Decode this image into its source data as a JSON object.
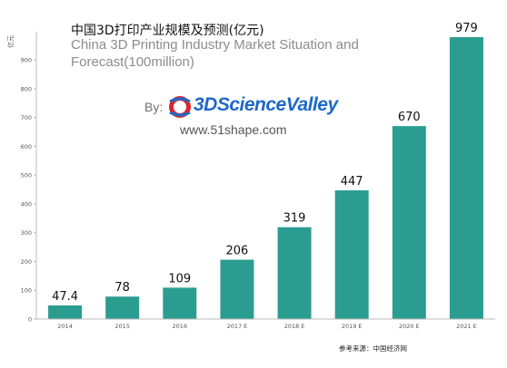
{
  "header": {
    "title_cn": "中国3D打印产业规模及预测(亿元)",
    "title_en": "China 3D Printing Industry Market Situation and Forecast(100million)",
    "by_label": "By:",
    "logo_text": "3DScienceValley",
    "website": "www.51shape.com"
  },
  "footer": {
    "source": "参考来源：中国经济网"
  },
  "colors": {
    "bar": "#2a9d90",
    "axis_text": "#555555",
    "axis_line": "#bbbbbb"
  },
  "chart_data": {
    "type": "bar",
    "title": "中国3D打印产业规模及预测(亿元)",
    "subtitle": "China 3D Printing Industry Market Situation and Forecast(100million)",
    "ylabel": "亿元",
    "xlabel": "",
    "categories": [
      "2014",
      "2015",
      "2016",
      "2017 E",
      "2018 E",
      "2019 E",
      "2020 E",
      "2021 E"
    ],
    "values": [
      47.4,
      78,
      109,
      206,
      319,
      447,
      670,
      979
    ],
    "value_labels": [
      "47.4",
      "78",
      "109",
      "206",
      "319",
      "447",
      "670",
      "979"
    ],
    "ylim": [
      0,
      960
    ],
    "yticks": [
      0,
      100,
      200,
      300,
      400,
      500,
      600,
      700,
      800,
      900
    ],
    "grid": false,
    "legend": "none"
  }
}
